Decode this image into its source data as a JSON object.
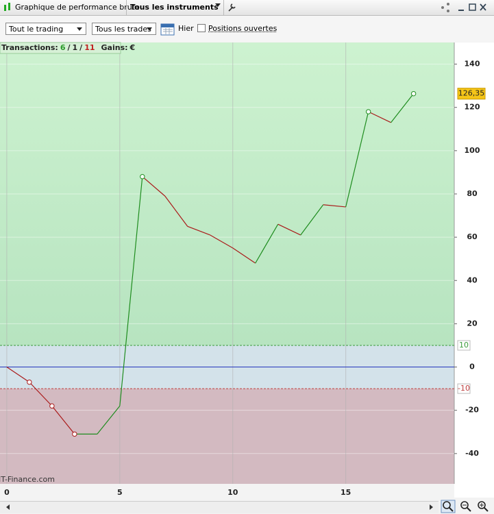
{
  "toolbar": {
    "title": "Graphique de performance brute",
    "instruments": "Tous les instruments"
  },
  "filters": {
    "period": "Tout le trading",
    "trades": "Tous les trades",
    "date": "Hier",
    "open_positions": "Positions ouvertes"
  },
  "summary": {
    "label": "Transactions:",
    "won": 6,
    "separator": "/",
    "neutral": 1,
    "lost": 11,
    "gains": "Gains:",
    "currency": "€"
  },
  "watermark": "IT-Finance.com",
  "chart_data": {
    "type": "line",
    "x": [
      0,
      1,
      2,
      3,
      4,
      5,
      6,
      7,
      8,
      9,
      10,
      11,
      12,
      13,
      14,
      15,
      16,
      17,
      18
    ],
    "values": [
      0,
      -7,
      -18,
      -31,
      -31,
      -18,
      88,
      79,
      65,
      61,
      55,
      48,
      66,
      61,
      75,
      74,
      118,
      113,
      126.35
    ],
    "last_value_label": "126,35",
    "markers": [
      1,
      2,
      3,
      6,
      16,
      18
    ],
    "up_color": "#1e8c1e",
    "down_color": "#aa1a1a",
    "zero_color": "#2233bb",
    "thresholds": [
      10,
      -10
    ],
    "zone_colors": {
      "above": "#c2ecc6",
      "middle": "#d3e2ea",
      "below": "#d3bac1"
    },
    "xlim": [
      -0.3,
      19.8
    ],
    "xticks": [
      0,
      5,
      10,
      15
    ],
    "ylim": [
      -54,
      150
    ],
    "yticks": [
      -40,
      -20,
      0,
      20,
      40,
      60,
      80,
      100,
      120,
      140
    ],
    "grid": true
  }
}
